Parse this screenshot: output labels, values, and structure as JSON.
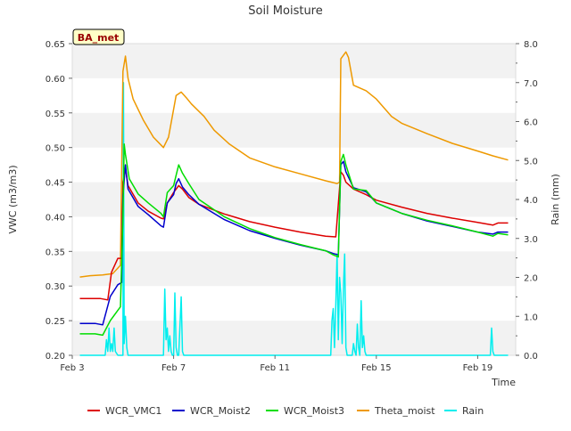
{
  "chart_data": {
    "type": "line",
    "title": "Soil Moisture",
    "badge": "BA_met",
    "xlabel": "Time",
    "ylabel": "VWC (m3/m3)",
    "y2label": "Rain (mm)",
    "xlim": [
      3.0,
      20.5
    ],
    "ylim": [
      0.2,
      0.65
    ],
    "y2lim": [
      0.0,
      8.0
    ],
    "xticks": [
      {
        "value": 3,
        "label": "Feb 3"
      },
      {
        "value": 7,
        "label": "Feb 7"
      },
      {
        "value": 11,
        "label": "Feb 11"
      },
      {
        "value": 15,
        "label": "Feb 15"
      },
      {
        "value": 19,
        "label": "Feb 19"
      }
    ],
    "yticks": [
      "0.20",
      "0.25",
      "0.30",
      "0.35",
      "0.40",
      "0.45",
      "0.50",
      "0.55",
      "0.60",
      "0.65"
    ],
    "y2ticks": [
      "0.0",
      "1.0",
      "2.0",
      "3.0",
      "4.0",
      "5.0",
      "6.0",
      "7.0",
      "8.0"
    ],
    "x_units": "day of February",
    "grid": "horizontal bands",
    "legend": "bottom",
    "series": [
      {
        "name": "WCR_VMC1",
        "color": "#dd0000",
        "axis": "left",
        "x": [
          3.3,
          4.1,
          4.4,
          4.55,
          4.8,
          4.95,
          5.0,
          5.1,
          5.2,
          5.6,
          6.0,
          6.5,
          6.6,
          6.75,
          7.0,
          7.2,
          7.35,
          7.6,
          8.0,
          9.0,
          10.0,
          11.0,
          12.0,
          13.0,
          13.4,
          13.6,
          13.7,
          13.8,
          14.1,
          14.6,
          15.0,
          16.0,
          17.0,
          18.0,
          19.0,
          19.6,
          19.8,
          20.2
        ],
        "y": [
          0.282,
          0.282,
          0.28,
          0.32,
          0.34,
          0.34,
          0.45,
          0.47,
          0.445,
          0.42,
          0.408,
          0.398,
          0.397,
          0.42,
          0.435,
          0.445,
          0.44,
          0.428,
          0.418,
          0.404,
          0.393,
          0.385,
          0.378,
          0.372,
          0.371,
          0.465,
          0.46,
          0.45,
          0.44,
          0.432,
          0.424,
          0.414,
          0.405,
          0.398,
          0.392,
          0.388,
          0.391,
          0.391
        ]
      },
      {
        "name": "WCR_Moist2",
        "color": "#0000cc",
        "axis": "left",
        "x": [
          3.3,
          3.9,
          4.2,
          4.5,
          4.8,
          4.95,
          5.0,
          5.1,
          5.2,
          5.6,
          6.0,
          6.5,
          6.6,
          6.75,
          7.0,
          7.1,
          7.2,
          7.35,
          7.6,
          8.0,
          9.0,
          10.0,
          11.0,
          12.0,
          13.0,
          13.3,
          13.5,
          13.6,
          13.7,
          13.8,
          14.1,
          14.6,
          15.0,
          16.0,
          17.0,
          18.0,
          19.0,
          19.6,
          19.8,
          20.2
        ],
        "y": [
          0.246,
          0.246,
          0.244,
          0.285,
          0.302,
          0.305,
          0.43,
          0.475,
          0.44,
          0.415,
          0.403,
          0.387,
          0.385,
          0.42,
          0.432,
          0.448,
          0.455,
          0.443,
          0.432,
          0.418,
          0.396,
          0.38,
          0.369,
          0.359,
          0.351,
          0.347,
          0.345,
          0.475,
          0.48,
          0.465,
          0.442,
          0.436,
          0.42,
          0.405,
          0.394,
          0.386,
          0.378,
          0.375,
          0.378,
          0.378
        ]
      },
      {
        "name": "WCR_Moist3",
        "color": "#00dd00",
        "axis": "left",
        "x": [
          3.3,
          3.9,
          4.2,
          4.5,
          4.8,
          4.9,
          5.0,
          5.05,
          5.1,
          5.25,
          5.6,
          6.0,
          6.5,
          6.6,
          6.75,
          7.0,
          7.1,
          7.2,
          7.35,
          7.6,
          8.0,
          9.0,
          10.0,
          11.0,
          12.0,
          13.0,
          13.3,
          13.5,
          13.6,
          13.7,
          13.8,
          14.1,
          14.6,
          15.0,
          16.0,
          17.0,
          18.0,
          19.0,
          19.6,
          19.8,
          20.2
        ],
        "y": [
          0.231,
          0.231,
          0.229,
          0.25,
          0.265,
          0.27,
          0.4,
          0.505,
          0.49,
          0.455,
          0.433,
          0.42,
          0.405,
          0.4,
          0.435,
          0.445,
          0.46,
          0.475,
          0.463,
          0.448,
          0.425,
          0.4,
          0.383,
          0.37,
          0.36,
          0.351,
          0.345,
          0.342,
          0.48,
          0.49,
          0.475,
          0.44,
          0.438,
          0.42,
          0.405,
          0.395,
          0.387,
          0.378,
          0.372,
          0.376,
          0.374
        ]
      },
      {
        "name": "Theta_moist",
        "color": "#ee9900",
        "axis": "left",
        "x": [
          3.3,
          3.7,
          4.2,
          4.6,
          4.9,
          5.0,
          5.1,
          5.2,
          5.4,
          5.8,
          6.2,
          6.6,
          6.8,
          7.1,
          7.3,
          7.5,
          7.7,
          8.2,
          8.6,
          9.2,
          10.0,
          11.0,
          12.0,
          13.0,
          13.45,
          13.55,
          13.6,
          13.8,
          13.9,
          14.1,
          14.6,
          15.0,
          15.6,
          16.0,
          17.0,
          18.0,
          19.0,
          19.6,
          20.2
        ],
        "y": [
          0.313,
          0.315,
          0.316,
          0.318,
          0.33,
          0.61,
          0.632,
          0.6,
          0.57,
          0.54,
          0.515,
          0.5,
          0.515,
          0.575,
          0.58,
          0.572,
          0.563,
          0.545,
          0.525,
          0.505,
          0.485,
          0.472,
          0.462,
          0.452,
          0.448,
          0.45,
          0.628,
          0.638,
          0.63,
          0.59,
          0.582,
          0.57,
          0.545,
          0.535,
          0.52,
          0.506,
          0.495,
          0.488,
          0.482
        ]
      },
      {
        "name": "Rain",
        "color": "#00eeee",
        "axis": "right",
        "x": [
          3.3,
          4.3,
          4.35,
          4.4,
          4.45,
          4.5,
          4.55,
          4.6,
          4.65,
          4.7,
          4.8,
          5.0,
          5.02,
          5.05,
          5.1,
          5.15,
          5.2,
          6.6,
          6.65,
          6.7,
          6.75,
          6.8,
          6.85,
          6.9,
          6.95,
          7.0,
          7.05,
          7.1,
          7.15,
          7.2,
          7.3,
          7.35,
          7.4,
          13.0,
          13.2,
          13.25,
          13.3,
          13.35,
          13.4,
          13.45,
          13.5,
          13.55,
          13.6,
          13.65,
          13.7,
          13.75,
          13.8,
          13.85,
          13.9,
          13.95,
          14.0,
          14.05,
          14.1,
          14.15,
          14.2,
          14.25,
          14.3,
          14.35,
          14.4,
          14.45,
          14.5,
          14.55,
          14.6,
          15.0,
          19.5,
          19.55,
          19.6,
          19.65,
          20.2
        ],
        "y": [
          0,
          0,
          0.4,
          0.1,
          0.7,
          0.1,
          0.3,
          0.1,
          0.7,
          0.1,
          0,
          0,
          7.0,
          0.3,
          1.0,
          0.2,
          0,
          0,
          1.7,
          0.4,
          0.7,
          0.1,
          0.5,
          0.1,
          0,
          0,
          1.6,
          0.2,
          0,
          0,
          1.5,
          0.1,
          0,
          0,
          0,
          0.9,
          1.2,
          0.2,
          1.3,
          2.6,
          0.4,
          2.0,
          1.6,
          0.3,
          1.7,
          2.6,
          0.2,
          0,
          0,
          0,
          0,
          0,
          0.3,
          0.1,
          0,
          0.8,
          0.2,
          0,
          1.4,
          0.2,
          0.5,
          0.1,
          0,
          0,
          0,
          0.7,
          0.1,
          0,
          0
        ]
      }
    ]
  }
}
